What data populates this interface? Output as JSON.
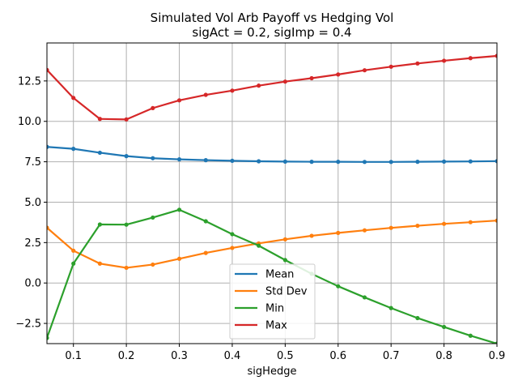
{
  "chart_data": {
    "type": "line",
    "title": "Simulated Vol Arb Payoff vs Hedging Vol",
    "subtitle": "sigAct = 0.2, sigImp = 0.4",
    "xlabel": "sigHedge",
    "ylabel": "",
    "xlim": [
      0.05,
      0.9
    ],
    "ylim": [
      -3.75,
      14.85
    ],
    "grid": true,
    "legend_placement": "lower-center",
    "x": [
      0.05,
      0.1,
      0.15,
      0.2,
      0.25,
      0.3,
      0.35,
      0.4,
      0.45,
      0.5,
      0.55,
      0.6,
      0.65,
      0.7,
      0.75,
      0.8,
      0.85,
      0.9
    ],
    "x_ticks": [
      "0.1",
      "0.2",
      "0.3",
      "0.4",
      "0.5",
      "0.6",
      "0.7",
      "0.8",
      "0.9"
    ],
    "x_tick_values": [
      0.1,
      0.2,
      0.3,
      0.4,
      0.5,
      0.6,
      0.7,
      0.8,
      0.9
    ],
    "y_ticks": [
      "−2.5",
      "0.0",
      "2.5",
      "5.0",
      "7.5",
      "10.0",
      "12.5"
    ],
    "y_tick_values": [
      -2.5,
      0.0,
      2.5,
      5.0,
      7.5,
      10.0,
      12.5
    ],
    "series": [
      {
        "name": "Mean",
        "color": "#1f77b4",
        "values": [
          8.42,
          8.3,
          8.06,
          7.85,
          7.72,
          7.65,
          7.6,
          7.56,
          7.53,
          7.51,
          7.5,
          7.5,
          7.49,
          7.49,
          7.5,
          7.51,
          7.52,
          7.54
        ]
      },
      {
        "name": "Std Dev",
        "color": "#ff7f0e",
        "values": [
          3.42,
          2.0,
          1.2,
          0.94,
          1.14,
          1.5,
          1.86,
          2.17,
          2.45,
          2.7,
          2.92,
          3.1,
          3.26,
          3.41,
          3.54,
          3.66,
          3.76,
          3.86
        ]
      },
      {
        "name": "Min",
        "color": "#2ca02c",
        "values": [
          -3.4,
          1.2,
          3.62,
          3.61,
          4.05,
          4.53,
          3.82,
          3.02,
          2.31,
          1.42,
          0.57,
          -0.2,
          -0.89,
          -1.55,
          -2.17,
          -2.72,
          -3.26,
          -3.75
        ]
      },
      {
        "name": "Max",
        "color": "#d62728",
        "values": [
          13.18,
          11.45,
          10.15,
          10.12,
          10.82,
          11.3,
          11.64,
          11.9,
          12.21,
          12.46,
          12.67,
          12.9,
          13.16,
          13.38,
          13.58,
          13.75,
          13.91,
          14.05
        ]
      }
    ]
  }
}
